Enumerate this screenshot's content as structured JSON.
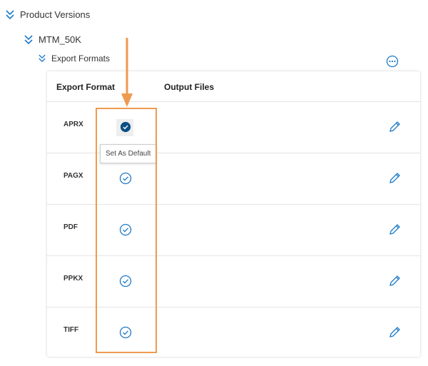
{
  "tree": {
    "product_versions": "Product Versions",
    "mtm": "MTM_50K",
    "export_formats": "Export Formats"
  },
  "table": {
    "columns": [
      "Export Format",
      "Output Files"
    ],
    "rows": [
      {
        "format": "APRX",
        "default": true
      },
      {
        "format": "PAGX",
        "default": false
      },
      {
        "format": "PDF",
        "default": false
      },
      {
        "format": "PPKX",
        "default": false
      },
      {
        "format": "TIFF",
        "default": false
      }
    ]
  },
  "tooltip": "Set As Default",
  "colors": {
    "accent": "#1e7ac7",
    "default_fill": "#0b4f86",
    "highlight": "#ee9a4f"
  }
}
